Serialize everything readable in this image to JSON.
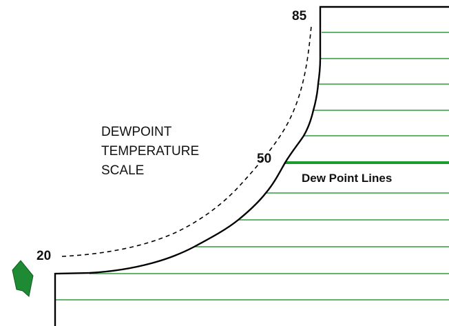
{
  "scale_labels": {
    "top": "85",
    "middle": "50",
    "bottom": "20"
  },
  "scale_title": [
    "DEWPOINT",
    "TEMPERATURE",
    "SCALE"
  ],
  "line_label": "Dew Point Lines"
}
